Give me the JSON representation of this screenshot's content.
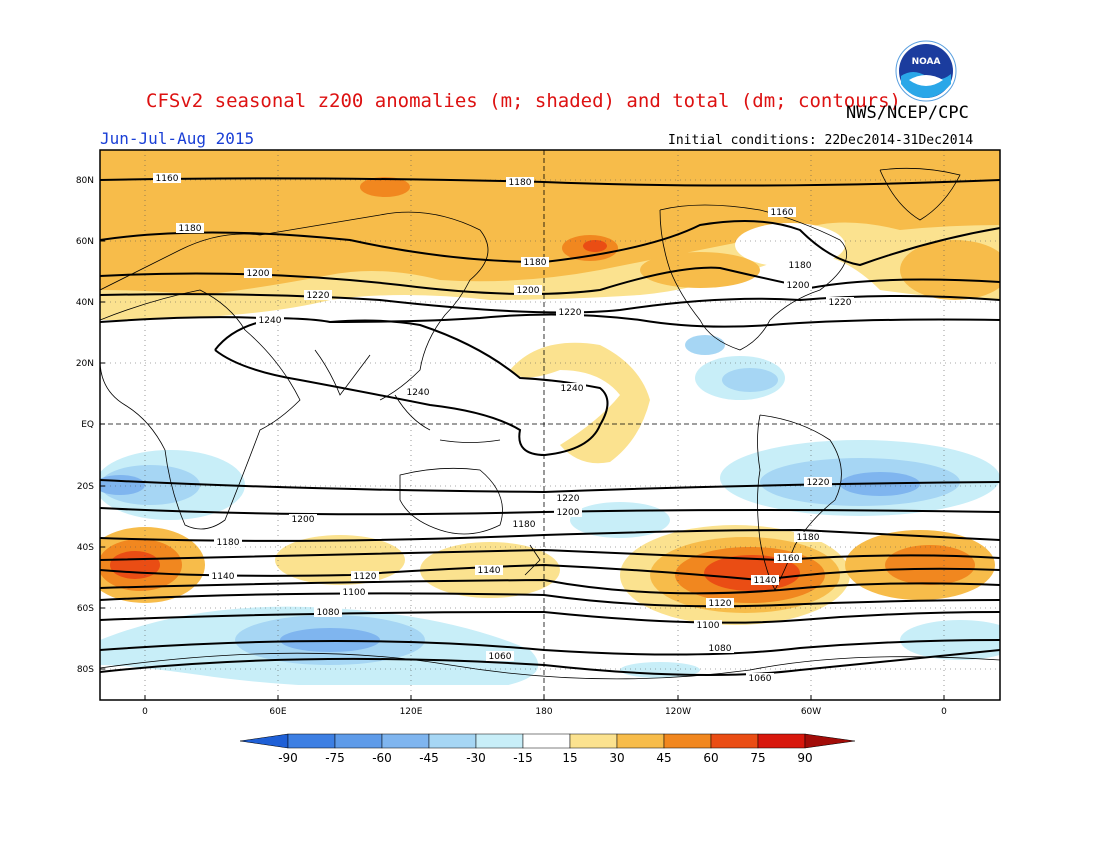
{
  "title": "CFSv2 seasonal z200 anomalies (m; shaded) and total (dm; contours)",
  "agency": "NWS/NCEP/CPC",
  "season": "Jun-Jul-Aug 2015",
  "initial_conditions": "Initial conditions: 22Dec2014-31Dec2014",
  "logo_text": "NOAA",
  "lat_labels": [
    "80N",
    "60N",
    "40N",
    "20N",
    "EQ",
    "20S",
    "40S",
    "60S",
    "80S"
  ],
  "lon_labels": [
    "0",
    "60E",
    "120E",
    "180",
    "120W",
    "60W",
    "0"
  ],
  "colorbar": {
    "labels": [
      "-90",
      "-75",
      "-60",
      "-45",
      "-30",
      "-15",
      "15",
      "30",
      "45",
      "60",
      "75",
      "90"
    ],
    "colors": [
      "#1e5fd6",
      "#3d7fe3",
      "#5e9be9",
      "#7fb5ef",
      "#a6d6f4",
      "#c8eef8",
      "#ffffff",
      "#fbe28f",
      "#f7bc4a",
      "#f1871f",
      "#ea4d14",
      "#d8170c",
      "#a20c08"
    ]
  },
  "contour_labels": [
    "1160",
    "1180",
    "1180",
    "1160",
    "1180",
    "1180",
    "1200",
    "1200",
    "1200",
    "1220",
    "1220",
    "1220",
    "1240",
    "1240",
    "1240",
    "1220",
    "1220",
    "1200",
    "1200",
    "1180",
    "1180",
    "1180",
    "1160",
    "1140",
    "1140",
    "1120",
    "1120",
    "1140",
    "1100",
    "1100",
    "1080",
    "1080",
    "1060",
    "1060"
  ]
}
